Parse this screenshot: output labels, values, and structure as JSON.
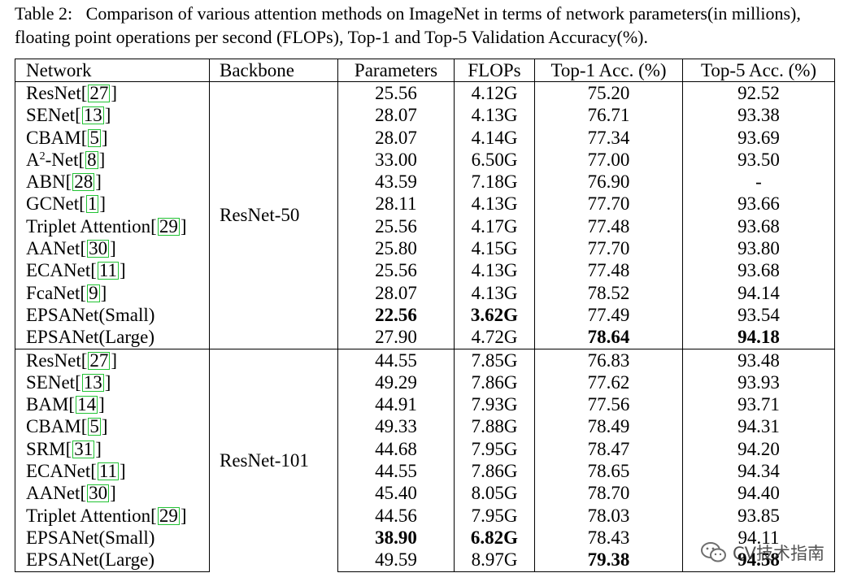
{
  "caption": {
    "label": "Table 2:",
    "text": "Comparison of various attention methods on ImageNet in terms of network parameters(in millions), floating point operations per second (FLOPs), Top-1 and Top-5 Validation Accuracy(%)."
  },
  "table": {
    "columns": [
      "Network",
      "Backbone",
      "Parameters",
      "FLOPs",
      "Top-1 Acc. (%)",
      "Top-5 Acc. (%)"
    ],
    "groups": [
      {
        "backbone": "ResNet-50",
        "rows": [
          {
            "name": "ResNet",
            "ref": "27",
            "params": "25.56",
            "flops": "4.12G",
            "top1": "75.20",
            "top5": "92.52"
          },
          {
            "name": "SENet",
            "ref": "13",
            "params": "28.07",
            "flops": "4.13G",
            "top1": "76.71",
            "top5": "93.38"
          },
          {
            "name": "CBAM",
            "ref": "5",
            "params": "28.07",
            "flops": "4.14G",
            "top1": "77.34",
            "top5": "93.69"
          },
          {
            "name": "A",
            "sup": "2",
            "suffix": "-Net",
            "ref": "8",
            "params": "33.00",
            "flops": "6.50G",
            "top1": "77.00",
            "top5": "93.50"
          },
          {
            "name": "ABN",
            "ref": "28",
            "params": "43.59",
            "flops": "7.18G",
            "top1": "76.90",
            "top5": "-"
          },
          {
            "name": "GCNet",
            "ref": "1",
            "params": "28.11",
            "flops": "4.13G",
            "top1": "77.70",
            "top5": "93.66"
          },
          {
            "name": "Triplet Attention",
            "ref": "29",
            "params": "25.56",
            "flops": "4.17G",
            "top1": "77.48",
            "top5": "93.68"
          },
          {
            "name": "AANet",
            "ref": "30",
            "params": "25.80",
            "flops": "4.15G",
            "top1": "77.70",
            "top5": "93.80"
          },
          {
            "name": "ECANet",
            "ref": "11",
            "params": "25.56",
            "flops": "4.13G",
            "top1": "77.48",
            "top5": "93.68"
          },
          {
            "name": "FcaNet",
            "ref": "9",
            "params": "28.07",
            "flops": "4.13G",
            "top1": "78.52",
            "top5": "94.14"
          },
          {
            "name": "EPSANet(Small)",
            "ref": "",
            "params": "22.56",
            "flops": "3.62G",
            "top1": "77.49",
            "top5": "93.54",
            "bold": [
              "params",
              "flops"
            ]
          },
          {
            "name": "EPSANet(Large)",
            "ref": "",
            "params": "27.90",
            "flops": "4.72G",
            "top1": "78.64",
            "top5": "94.18",
            "bold": [
              "top1",
              "top5"
            ]
          }
        ]
      },
      {
        "backbone": "ResNet-101",
        "rows": [
          {
            "name": "ResNet",
            "ref": "27",
            "params": "44.55",
            "flops": "7.85G",
            "top1": "76.83",
            "top5": "93.48"
          },
          {
            "name": "SENet",
            "ref": "13",
            "params": "49.29",
            "flops": "7.86G",
            "top1": "77.62",
            "top5": "93.93"
          },
          {
            "name": "BAM",
            "ref": "14",
            "params": "44.91",
            "flops": "7.93G",
            "top1": "77.56",
            "top5": "93.71"
          },
          {
            "name": "CBAM",
            "ref": "5",
            "params": "49.33",
            "flops": "7.88G",
            "top1": "78.49",
            "top5": "94.31"
          },
          {
            "name": "SRM",
            "ref": "31",
            "params": "44.68",
            "flops": "7.95G",
            "top1": "78.47",
            "top5": "94.20"
          },
          {
            "name": "ECANet",
            "ref": "11",
            "params": "44.55",
            "flops": "7.86G",
            "top1": "78.65",
            "top5": "94.34"
          },
          {
            "name": "AANet",
            "ref": "30",
            "params": "45.40",
            "flops": "8.05G",
            "top1": "78.70",
            "top5": "94.40"
          },
          {
            "name": "Triplet Attention",
            "ref": "29",
            "params": "44.56",
            "flops": "7.95G",
            "top1": "78.03",
            "top5": "93.85"
          },
          {
            "name": "EPSANet(Small)",
            "ref": "",
            "params": "38.90",
            "flops": "6.82G",
            "top1": "78.43",
            "top5": "94.11",
            "bold": [
              "params",
              "flops"
            ]
          },
          {
            "name": "EPSANet(Large)",
            "ref": "",
            "params": "49.59",
            "flops": "8.97G",
            "top1": "79.38",
            "top5": "94.58",
            "bold": [
              "top1",
              "top5"
            ]
          }
        ]
      }
    ]
  },
  "colors": {
    "ref_box": "#22c334"
  },
  "watermark": {
    "icon": "wechat-icon",
    "text": "CV技术指南"
  }
}
